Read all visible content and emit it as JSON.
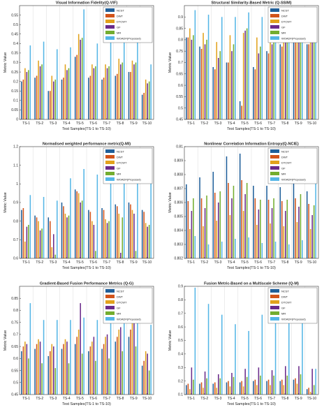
{
  "series_names": [
    "NCST",
    "DWT",
    "DTCWT",
    "GF",
    "MR",
    "WOADF(Proposed)"
  ],
  "series_colors": [
    "#1f5f9a",
    "#d1541b",
    "#e2a21c",
    "#6a2b8a",
    "#73ad2f",
    "#55b6e6"
  ],
  "chart_data": [
    {
      "type": "bar",
      "title": "Visual Information Fidelity(Q-VIF)",
      "xlabel": "Test Samples(TS-1 to TS-10)",
      "ylabel": "Metric Value",
      "categories": [
        "TS-1",
        "TS-2",
        "TS-3",
        "TS-4",
        "TS-5",
        "TS-6",
        "TS-7",
        "TS-8",
        "TS-9",
        "TS-10"
      ],
      "ylim": [
        0,
        0.6
      ],
      "yticks": [
        "0",
        "0.05",
        "0.1",
        "0.15",
        "0.2",
        "0.25",
        "0.3",
        "0.35",
        "0.4",
        "0.45",
        "0.5",
        "0.55"
      ],
      "ytick_values": [
        0,
        0.05,
        0.1,
        0.15,
        0.2,
        0.25,
        0.3,
        0.35,
        0.4,
        0.45,
        0.5,
        0.55
      ],
      "legend": "top-right",
      "series": [
        {
          "name": "NCST",
          "values": [
            0.2,
            0.22,
            0.15,
            0.21,
            0.33,
            0.22,
            0.21,
            0.23,
            0.25,
            0.13
          ]
        },
        {
          "name": "DWT",
          "values": [
            0.21,
            0.23,
            0.15,
            0.22,
            0.34,
            0.23,
            0.22,
            0.24,
            0.25,
            0.14
          ]
        },
        {
          "name": "DTCWT",
          "values": [
            0.27,
            0.31,
            0.23,
            0.29,
            0.45,
            0.29,
            0.29,
            0.32,
            0.31,
            0.21
          ]
        },
        {
          "name": "GF",
          "values": [
            0.25,
            0.28,
            0.2,
            0.26,
            0.42,
            0.27,
            0.27,
            0.29,
            0.29,
            0.19
          ]
        },
        {
          "name": "MR",
          "values": [
            0.26,
            0.29,
            0.21,
            0.27,
            0.43,
            0.28,
            0.28,
            0.3,
            0.3,
            0.2
          ]
        },
        {
          "name": "WOADF(Proposed)",
          "values": [
            0.39,
            0.41,
            0.37,
            0.38,
            0.58,
            0.4,
            0.41,
            0.44,
            0.42,
            0.29
          ]
        }
      ]
    },
    {
      "type": "bar",
      "title": "Structural Similarity-Based Metric (Q-SSIM)",
      "xlabel": "Test Samples(TS-1 to TS-10)",
      "ylabel": "Metric Value",
      "categories": [
        "TS-1",
        "TS-2",
        "TS-3",
        "TS-4",
        "TS-5",
        "TS-6",
        "TS-7",
        "TS-8",
        "TS-9",
        "TS-10"
      ],
      "ylim": [
        0.45,
        0.95
      ],
      "yticks": [
        "0.45",
        "0.5",
        "0.55",
        "0.6",
        "0.65",
        "0.7",
        "0.75",
        "0.8",
        "0.85",
        "0.9"
      ],
      "ytick_values": [
        0.45,
        0.5,
        0.55,
        0.6,
        0.65,
        0.7,
        0.75,
        0.8,
        0.85,
        0.9
      ],
      "legend": "top-right",
      "series": [
        {
          "name": "NCST",
          "values": [
            0.81,
            0.77,
            0.68,
            0.7,
            0.53,
            0.68,
            0.75,
            0.78,
            0.8,
            0.78
          ]
        },
        {
          "name": "DWT",
          "values": [
            0.81,
            0.76,
            0.67,
            0.7,
            0.51,
            0.67,
            0.74,
            0.77,
            0.8,
            0.78
          ]
        },
        {
          "name": "DTCWT",
          "values": [
            0.85,
            0.83,
            0.79,
            0.82,
            0.83,
            0.81,
            0.84,
            0.85,
            0.86,
            0.85
          ]
        },
        {
          "name": "GF",
          "values": [
            0.8,
            0.78,
            0.72,
            0.75,
            0.84,
            0.74,
            0.78,
            0.8,
            0.82,
            0.81
          ]
        },
        {
          "name": "MR",
          "values": [
            0.82,
            0.8,
            0.75,
            0.78,
            0.85,
            0.77,
            0.81,
            0.82,
            0.83,
            0.82
          ]
        },
        {
          "name": "WOADF(Proposed)",
          "values": [
            0.93,
            0.91,
            0.9,
            0.9,
            0.92,
            0.9,
            0.91,
            0.92,
            0.93,
            0.93
          ]
        }
      ]
    },
    {
      "type": "bar",
      "title": "Normalised weighted performance metric(Q-MI)",
      "xlabel": "Test Samples(TS-1 to TS-10)",
      "ylabel": "Metric Value",
      "categories": [
        "TS-1",
        "TS-2",
        "TS-3",
        "TS-4",
        "TS-5",
        "TS-6",
        "TS-7",
        "TS-8",
        "TS-9",
        "TS-10"
      ],
      "ylim": [
        0.6,
        1.2
      ],
      "yticks": [
        "0.6",
        "0.7",
        "0.8",
        "0.9",
        "1",
        "1.1",
        "1.2"
      ],
      "ytick_values": [
        0.6,
        0.7,
        0.8,
        0.9,
        1.0,
        1.1,
        1.2
      ],
      "legend": "top-right",
      "series": [
        {
          "name": "NCST",
          "values": [
            0.86,
            0.83,
            0.82,
            0.9,
            0.97,
            0.86,
            0.87,
            0.89,
            0.9,
            0.86
          ]
        },
        {
          "name": "DWT",
          "values": [
            0.87,
            0.82,
            0.8,
            0.88,
            0.96,
            0.85,
            0.86,
            0.88,
            0.89,
            0.85
          ]
        },
        {
          "name": "DTCWT",
          "values": [
            0.69,
            0.8,
            0.66,
            0.84,
            0.95,
            0.8,
            0.81,
            0.84,
            0.86,
            0.79
          ]
        },
        {
          "name": "GF",
          "values": [
            0.77,
            0.75,
            0.73,
            0.82,
            0.9,
            0.78,
            0.79,
            0.63,
            0.84,
            0.77
          ]
        },
        {
          "name": "MR",
          "values": [
            0.78,
            0.76,
            0.62,
            0.83,
            0.91,
            0.64,
            0.8,
            0.82,
            0.64,
            0.78
          ]
        },
        {
          "name": "WOADF(Proposed)",
          "values": [
            0.94,
            0.93,
            0.91,
            1.03,
            1.08,
            1.05,
            1.06,
            1.04,
            1.09,
            1.02
          ]
        }
      ]
    },
    {
      "type": "bar",
      "title": "Nonlinear Correlation Information Entropy(Q-NCIE)",
      "xlabel": "Test Samples(TS-1 to TS-10)",
      "ylabel": "Metric Value",
      "categories": [
        "TS-1",
        "TS-2",
        "TS-3",
        "TS-4",
        "TS-5",
        "TS-6",
        "TS-7",
        "TS-8",
        "TS-9",
        "TS-10"
      ],
      "ylim": [
        0.802,
        0.81
      ],
      "yticks": [
        "0.802",
        "0.803",
        "0.804",
        "0.805",
        "0.806",
        "0.807",
        "0.808",
        "0.809",
        "0.81"
      ],
      "ytick_values": [
        0.802,
        0.803,
        0.804,
        0.805,
        0.806,
        0.807,
        0.808,
        0.809,
        0.81
      ],
      "legend": "top-right",
      "series": [
        {
          "name": "NCST",
          "values": [
            0.8073,
            0.8078,
            0.8082,
            0.8093,
            0.8095,
            0.8072,
            0.8072,
            0.8071,
            0.8077,
            0.8068
          ]
        },
        {
          "name": "DWT",
          "values": [
            0.8061,
            0.8063,
            0.8067,
            0.8074,
            0.8076,
            0.8063,
            0.8062,
            0.8061,
            0.8063,
            0.8059
          ]
        },
        {
          "name": "DTCWT",
          "values": [
            0.8041,
            0.8043,
            0.8047,
            0.8051,
            0.8054,
            0.8044,
            0.8045,
            0.8043,
            0.8046,
            0.8041
          ]
        },
        {
          "name": "GF",
          "values": [
            0.8054,
            0.8056,
            0.806,
            0.8063,
            0.8066,
            0.8055,
            0.8056,
            0.8054,
            0.8057,
            0.8051
          ]
        },
        {
          "name": "MR",
          "values": [
            0.8063,
            0.8065,
            0.8068,
            0.8072,
            0.8074,
            0.8062,
            0.8063,
            0.8062,
            0.8066,
            0.8058
          ]
        },
        {
          "name": "WOADF(Proposed)",
          "values": [
            0.8036,
            0.803,
            0.8032,
            0.8034,
            0.8035,
            0.8031,
            0.8032,
            0.803,
            0.8033,
            0.8091
          ]
        }
      ]
    },
    {
      "type": "bar",
      "title": "Gradient-Based Fusion Performance Metrics (Q-G)",
      "xlabel": "Test Samples(TS-1 to TS-10)",
      "ylabel": "Metric Value",
      "categories": [
        "TS-1",
        "TS-2",
        "TS-3",
        "TS-4",
        "TS-5",
        "TS-6",
        "TS-7",
        "TS-8",
        "TS-9",
        "TS-10"
      ],
      "ylim": [
        0.45,
        0.9
      ],
      "yticks": [
        "0.45",
        "0.5",
        "0.55",
        "0.6",
        "0.65",
        "0.7",
        "0.75",
        "0.8",
        "0.85"
      ],
      "ytick_values": [
        0.45,
        0.5,
        0.55,
        0.6,
        0.65,
        0.7,
        0.75,
        0.8,
        0.85
      ],
      "legend": "top-right",
      "series": [
        {
          "name": "NCST",
          "values": [
            0.63,
            0.64,
            0.61,
            0.64,
            0.66,
            0.63,
            0.64,
            0.67,
            0.69,
            0.57
          ]
        },
        {
          "name": "DWT",
          "values": [
            0.65,
            0.66,
            0.63,
            0.66,
            0.69,
            0.65,
            0.66,
            0.69,
            0.72,
            0.59
          ]
        },
        {
          "name": "DTCWT",
          "values": [
            0.67,
            0.68,
            0.66,
            0.68,
            0.72,
            0.67,
            0.69,
            0.72,
            0.75,
            0.63
          ]
        },
        {
          "name": "GF",
          "values": [
            0.66,
            0.67,
            0.65,
            0.67,
            0.83,
            0.69,
            0.7,
            0.73,
            0.76,
            0.62
          ]
        },
        {
          "name": "MR",
          "values": [
            0.6,
            0.58,
            0.56,
            0.58,
            0.62,
            0.59,
            0.6,
            0.63,
            0.65,
            0.55
          ]
        },
        {
          "name": "WOADF(Proposed)",
          "values": [
            0.83,
            0.76,
            0.76,
            0.76,
            0.77,
            0.76,
            0.76,
            0.77,
            0.78,
            0.74
          ]
        }
      ]
    },
    {
      "type": "bar",
      "title": "Fusion Metric-Based on a Multiscale Scheme (Q-M)",
      "xlabel": "Test Samples(TS-1 to TS-10)",
      "ylabel": "Metric Value",
      "categories": [
        "TS-1",
        "TS-2",
        "TS-3",
        "TS-4",
        "TS-5",
        "TS-6",
        "TS-7",
        "TS-8",
        "TS-9",
        "TS-10"
      ],
      "ylim": [
        0.1,
        0.9
      ],
      "yticks": [
        "0.1",
        "0.2",
        "0.3",
        "0.4",
        "0.5",
        "0.6",
        "0.7",
        "0.8",
        "0.9"
      ],
      "ytick_values": [
        0.1,
        0.2,
        0.3,
        0.4,
        0.5,
        0.6,
        0.7,
        0.8,
        0.9
      ],
      "legend": "top-right",
      "series": [
        {
          "name": "NCST",
          "values": [
            0.17,
            0.18,
            0.18,
            0.19,
            0.19,
            0.2,
            0.2,
            0.2,
            0.21,
            0.14
          ]
        },
        {
          "name": "DWT",
          "values": [
            0.18,
            0.19,
            0.19,
            0.2,
            0.2,
            0.21,
            0.21,
            0.21,
            0.22,
            0.15
          ]
        },
        {
          "name": "DTCWT",
          "values": [
            0.14,
            0.15,
            0.15,
            0.16,
            0.16,
            0.17,
            0.17,
            0.17,
            0.18,
            0.12
          ]
        },
        {
          "name": "GF",
          "values": [
            0.3,
            0.27,
            0.25,
            0.26,
            0.29,
            0.3,
            0.28,
            0.31,
            0.31,
            0.29
          ]
        },
        {
          "name": "MR",
          "values": [
            0.21,
            0.22,
            0.22,
            0.23,
            0.23,
            0.24,
            0.24,
            0.24,
            0.25,
            0.17
          ]
        },
        {
          "name": "WOADF(Proposed)",
          "values": [
            0.89,
            0.77,
            0.69,
            0.62,
            0.57,
            0.69,
            0.79,
            0.81,
            0.78,
            0.29
          ]
        }
      ]
    }
  ]
}
